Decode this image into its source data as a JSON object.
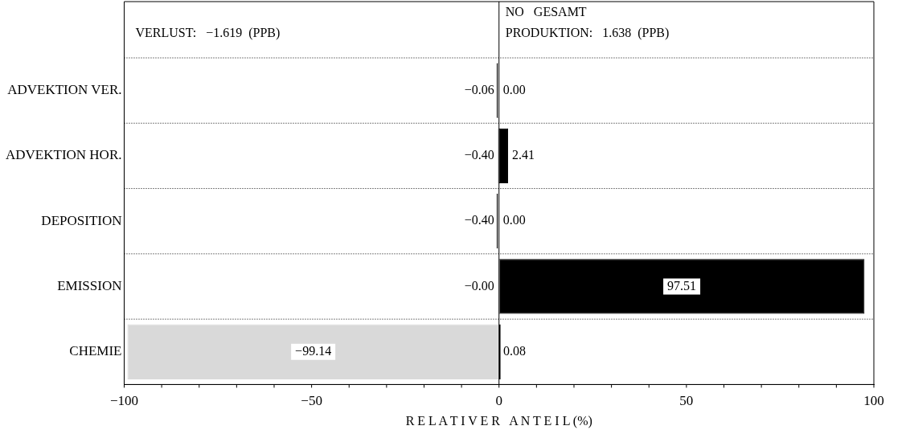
{
  "chart_data": {
    "type": "bar",
    "orientation": "horizontal",
    "stacked": true,
    "xlabel": "R E L A T I V E R   A N T E I L (%)",
    "categories": [
      "ADVEKTION VER.",
      "ADVEKTION HOR.",
      "DEPOSITION",
      "EMISSION",
      "CHEMIE"
    ],
    "series": [
      {
        "color": "#d9d9d9",
        "values": [
          -0.06,
          -0.4,
          -0.4,
          -0.0,
          -99.14
        ],
        "value_labels": [
          "−0.06",
          "−0.40",
          "−0.40",
          "−0.00",
          "−99.14"
        ]
      },
      {
        "color": "#000000",
        "values": [
          0.0,
          2.41,
          0.0,
          97.51,
          0.08
        ],
        "value_labels": [
          "0.00",
          "2.41",
          "0.00",
          "97.51",
          "0.08"
        ]
      }
    ],
    "xlim": [
      -100,
      100
    ],
    "xticks": [
      {
        "value": -100,
        "label": "−100"
      },
      {
        "value": -50,
        "label": "−50"
      },
      0,
      50,
      100
    ],
    "grid": "y",
    "legend": false,
    "annotations": [
      "NO   GESAMT",
      "VERLUST:   −1.619  (PPB)",
      "PRODUKTION:   1.638  (PPB)"
    ]
  }
}
